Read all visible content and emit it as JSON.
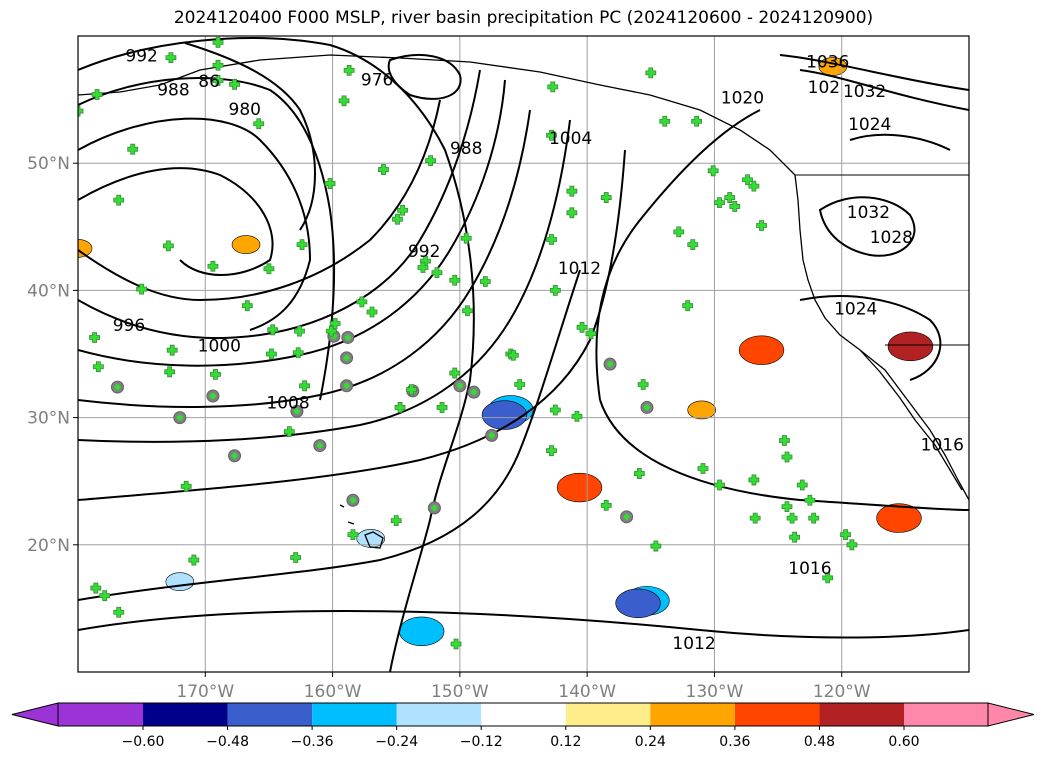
{
  "title": "2024120400 F000 MSLP, river basin precipitation PC (2024120600 - 2024120900)",
  "chart_data": {
    "type": "contour-map",
    "title": "2024120400 F000 MSLP, river basin precipitation PC (2024120600 - 2024120900)",
    "x_axis": {
      "range": [
        -180,
        -110
      ],
      "ticks": [
        -170,
        -160,
        -150,
        -140,
        -130,
        -120
      ],
      "tick_labels": [
        "170°W",
        "160°W",
        "150°W",
        "140°W",
        "130°W",
        "120°W"
      ]
    },
    "y_axis": {
      "range": [
        10,
        60
      ],
      "ticks": [
        20,
        30,
        40,
        50
      ],
      "tick_labels": [
        "20°N",
        "30°N",
        "40°N",
        "50°N"
      ]
    },
    "grid": true,
    "isobar_labels": [
      {
        "text": "992",
        "lon": -175,
        "lat": 58.4
      },
      {
        "text": "988",
        "lon": -172.5,
        "lat": 55.7
      },
      {
        "text": "86",
        "lon": -169.7,
        "lat": 56.4
      },
      {
        "text": "980",
        "lon": -166.9,
        "lat": 54.2
      },
      {
        "text": "976",
        "lon": -156.5,
        "lat": 56.5
      },
      {
        "text": "988",
        "lon": -149.5,
        "lat": 51.1
      },
      {
        "text": "1004",
        "lon": -141.3,
        "lat": 51.9
      },
      {
        "text": "992",
        "lon": -152.8,
        "lat": 43.0
      },
      {
        "text": "1012",
        "lon": -140.6,
        "lat": 41.7
      },
      {
        "text": "996",
        "lon": -176,
        "lat": 37.2
      },
      {
        "text": "1000",
        "lon": -168.9,
        "lat": 35.6
      },
      {
        "text": "1008",
        "lon": -163.5,
        "lat": 31.1
      },
      {
        "text": "1020",
        "lon": -127.8,
        "lat": 55.1
      },
      {
        "text": "1036",
        "lon": -121.1,
        "lat": 57.9
      },
      {
        "text": "1032",
        "lon": -118.2,
        "lat": 55.6
      },
      {
        "text": "102",
        "lon": -121.4,
        "lat": 55.9
      },
      {
        "text": "1024",
        "lon": -117.8,
        "lat": 53.0
      },
      {
        "text": "1032",
        "lon": -117.9,
        "lat": 46.1
      },
      {
        "text": "1028",
        "lon": -116.1,
        "lat": 44.1
      },
      {
        "text": "1024",
        "lon": -118.9,
        "lat": 38.5
      },
      {
        "text": "1016",
        "lon": -112.1,
        "lat": 27.8
      },
      {
        "text": "1016",
        "lon": -122.5,
        "lat": 18.1
      },
      {
        "text": "1012",
        "lon": -131.6,
        "lat": 12.2
      }
    ],
    "colorbar": {
      "tick_labels": [
        "−0.60",
        "−0.48",
        "−0.36",
        "−0.24",
        "−0.12",
        "0.12",
        "0.24",
        "0.36",
        "0.48",
        "0.60"
      ],
      "colors": [
        "#9c33d6",
        "#00008b",
        "#3a5fcd",
        "#00bfff",
        "#b0e2ff",
        "#ffffff",
        "#ffec8b",
        "#ffa500",
        "#ff4500",
        "#b22222",
        "#ff88aa"
      ],
      "extend": "both"
    },
    "shaded_regions": [
      {
        "lon": -146,
        "lat": 30.6,
        "value": -0.36
      },
      {
        "lon": -146.5,
        "lat": 30.2,
        "value": -0.48
      },
      {
        "lon": -135.3,
        "lat": 15.6,
        "value": -0.36
      },
      {
        "lon": -136,
        "lat": 15.4,
        "value": -0.48
      },
      {
        "lon": -157,
        "lat": 20.5,
        "value": -0.24
      },
      {
        "lon": -153,
        "lat": 13.2,
        "value": -0.36
      },
      {
        "lon": -172,
        "lat": 17.1,
        "value": -0.24
      },
      {
        "lon": -140.6,
        "lat": 24.5,
        "value": 0.36
      },
      {
        "lon": -114.6,
        "lat": 35.6,
        "value": 0.48
      },
      {
        "lon": -115.5,
        "lat": 22.1,
        "value": 0.36
      },
      {
        "lon": -180,
        "lat": 43.3,
        "value": 0.24
      },
      {
        "lon": -166.8,
        "lat": 43.6,
        "value": 0.24
      },
      {
        "lon": -120.7,
        "lat": 57.6,
        "value": 0.24
      },
      {
        "lon": -126.3,
        "lat": 35.3,
        "value": 0.36
      },
      {
        "lon": -131,
        "lat": 30.6,
        "value": 0.24
      }
    ],
    "green_markers": [
      [
        -172.7,
        58.3
      ],
      [
        -169,
        59.5
      ],
      [
        -169,
        57.7
      ],
      [
        -169,
        56.5
      ],
      [
        -167.7,
        56.2
      ],
      [
        -165.8,
        53.1
      ],
      [
        -158.7,
        57.3
      ],
      [
        -159.1,
        54.9
      ],
      [
        -160.2,
        48.4
      ],
      [
        -156,
        49.5
      ],
      [
        -154.9,
        45.6
      ],
      [
        -154.5,
        46.3
      ],
      [
        -152.3,
        50.2
      ],
      [
        -152.7,
        42.3
      ],
      [
        -152.9,
        41.8
      ],
      [
        -149.5,
        44.1
      ],
      [
        -150.4,
        40.8
      ],
      [
        -148,
        40.7
      ],
      [
        -149.4,
        38.4
      ],
      [
        -146,
        35
      ],
      [
        -142.8,
        44.0
      ],
      [
        -142.8,
        52.2
      ],
      [
        -142.7,
        56.0
      ],
      [
        -141.2,
        47.8
      ],
      [
        -141.2,
        46.1
      ],
      [
        -140.4,
        37.1
      ],
      [
        -139.7,
        36.6
      ],
      [
        -138.5,
        47.3
      ],
      [
        -142.5,
        40.0
      ],
      [
        -135,
        57.1
      ],
      [
        -133.9,
        53.3
      ],
      [
        -132.8,
        44.6
      ],
      [
        -131.7,
        43.6
      ],
      [
        -132.1,
        38.8
      ],
      [
        -131.4,
        53.3
      ],
      [
        -130.1,
        49.4
      ],
      [
        -129.6,
        46.9
      ],
      [
        -128.8,
        47.3
      ],
      [
        -128.4,
        46.6
      ],
      [
        -127.4,
        48.7
      ],
      [
        -126.9,
        48.2
      ],
      [
        -126.3,
        45.1
      ],
      [
        -124.5,
        28.2
      ],
      [
        -124.3,
        26.9
      ],
      [
        -124.3,
        23.0
      ],
      [
        -123.9,
        22.1
      ],
      [
        -123.7,
        20.6
      ],
      [
        -123.1,
        24.7
      ],
      [
        -122.5,
        23.5
      ],
      [
        -122.2,
        22.1
      ],
      [
        -119.7,
        20.8
      ],
      [
        -119.2,
        20.0
      ],
      [
        -121.1,
        17.4
      ],
      [
        -126.8,
        22.1
      ],
      [
        -126.9,
        25.1
      ],
      [
        -129.6,
        24.7
      ],
      [
        -130.9,
        26.0
      ],
      [
        -135.9,
        25.6
      ],
      [
        -135.6,
        32.6
      ],
      [
        -134.6,
        19.9
      ],
      [
        -138.5,
        23.1
      ],
      [
        -140.8,
        30.1
      ],
      [
        -142.5,
        30.6
      ],
      [
        -142.8,
        27.4
      ],
      [
        -145.3,
        32.6
      ],
      [
        -145.8,
        34.9
      ],
      [
        -150.4,
        33.5
      ],
      [
        -151.4,
        30.8
      ],
      [
        -151.8,
        41.4
      ],
      [
        -153.8,
        32.2
      ],
      [
        -154.7,
        30.8
      ],
      [
        -155,
        21.9
      ],
      [
        -156.9,
        38.3
      ],
      [
        -157.7,
        39.1
      ],
      [
        -159.8,
        37.4
      ],
      [
        -160.1,
        36.8
      ],
      [
        -162.6,
        36.8
      ],
      [
        -162.2,
        32.5
      ],
      [
        -162.7,
        35.1
      ],
      [
        -164.7,
        36.9
      ],
      [
        -164.8,
        35.0
      ],
      [
        -163.4,
        28.9
      ],
      [
        -165,
        41.7
      ],
      [
        -166.7,
        38.8
      ],
      [
        -172.9,
        43.5
      ],
      [
        -176.8,
        47.1
      ],
      [
        -178.7,
        36.3
      ],
      [
        -178.4,
        34.0
      ],
      [
        -180,
        54.1
      ],
      [
        -178.5,
        55.4
      ],
      [
        -175.7,
        51.1
      ],
      [
        -175,
        40.1
      ],
      [
        -172.6,
        35.3
      ],
      [
        -172.8,
        33.6
      ],
      [
        -169.2,
        33.4
      ],
      [
        -169.4,
        41.9
      ],
      [
        -162.4,
        43.6
      ],
      [
        -171.5,
        24.6
      ],
      [
        -170.9,
        18.8
      ],
      [
        -162.9,
        19.0
      ],
      [
        -158.4,
        20.8
      ],
      [
        -150.3,
        12.2
      ],
      [
        -178.6,
        16.6
      ],
      [
        -177.9,
        16.0
      ],
      [
        -176.8,
        14.7
      ]
    ],
    "gray_circle_markers": [
      [
        -159.9,
        36.4
      ],
      [
        -158.8,
        36.3
      ],
      [
        -158.9,
        34.7
      ],
      [
        -158.9,
        32.5
      ],
      [
        -150,
        32.5
      ],
      [
        -148.9,
        32.0
      ],
      [
        -147.5,
        28.6
      ],
      [
        -153.7,
        32.1
      ],
      [
        -162.8,
        30.5
      ],
      [
        -161,
        27.8
      ],
      [
        -169.4,
        31.7
      ],
      [
        -172,
        30.0
      ],
      [
        -167.7,
        27.0
      ],
      [
        -158.4,
        23.5
      ],
      [
        -152,
        22.9
      ],
      [
        -136.9,
        22.2
      ],
      [
        -135.3,
        30.8
      ],
      [
        -138.2,
        34.2
      ],
      [
        -176.9,
        32.4
      ]
    ]
  }
}
